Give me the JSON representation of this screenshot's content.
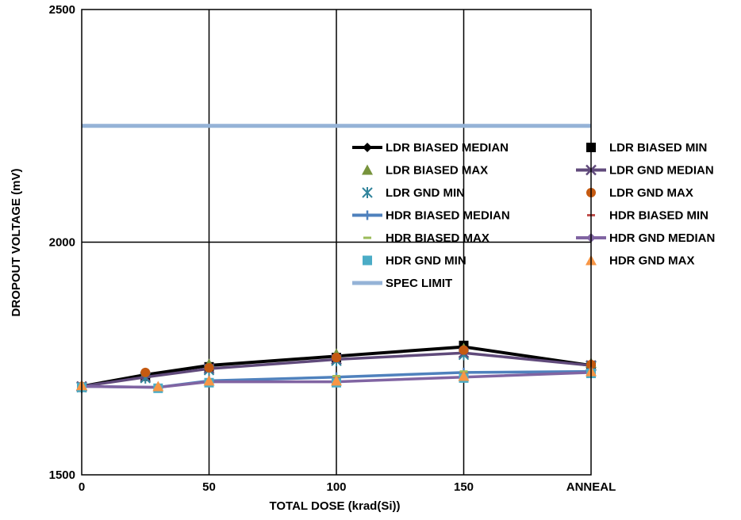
{
  "chart_data": {
    "type": "line",
    "title": "",
    "xlabel": "TOTAL DOSE (krad(Si))",
    "ylabel": "DROPOUT VOLTAGE (mV)",
    "ylim": [
      1500,
      2500
    ],
    "y_ticks": [
      "1500",
      "2000",
      "2500"
    ],
    "x_ticks": [
      {
        "x": 0,
        "label": "0"
      },
      {
        "x": 50,
        "label": "50"
      },
      {
        "x": 100,
        "label": "100"
      },
      {
        "x": 150,
        "label": "150"
      },
      {
        "x": 200,
        "label": "ANNEAL"
      }
    ],
    "xlim": [
      0,
      200
    ],
    "grid": true,
    "legend_position": "right",
    "spec_limit": 2250,
    "series": [
      {
        "name": "LDR BIASED MEDIAN",
        "color": "#000000",
        "marker": "diamond",
        "line": true,
        "x": [
          0,
          25,
          50,
          100,
          150,
          200
        ],
        "y": [
          1690,
          1715,
          1735,
          1755,
          1775,
          1735
        ]
      },
      {
        "name": "LDR BIASED MIN",
        "color": "#000000",
        "marker": "square",
        "line": false,
        "x": [
          0,
          25,
          50,
          100,
          150,
          200
        ],
        "y": [
          1688,
          1712,
          1732,
          1752,
          1778,
          1733
        ]
      },
      {
        "name": "LDR BIASED MAX",
        "color": "#77933c",
        "marker": "triangle",
        "line": false,
        "x": [
          0,
          25,
          50,
          100,
          150,
          200
        ],
        "y": [
          1692,
          1718,
          1738,
          1760,
          1772,
          1740
        ]
      },
      {
        "name": "LDR GND MEDIAN",
        "color": "#604a7b",
        "marker": "x",
        "line": true,
        "x": [
          0,
          25,
          50,
          100,
          150,
          200
        ],
        "y": [
          1690,
          1710,
          1728,
          1748,
          1762,
          1735
        ]
      },
      {
        "name": "LDR GND MIN",
        "color": "#31849b",
        "marker": "asterisk",
        "line": false,
        "x": [
          0,
          25,
          50,
          100,
          150,
          200
        ],
        "y": [
          1688,
          1708,
          1725,
          1745,
          1758,
          1733
        ]
      },
      {
        "name": "LDR GND MAX",
        "color": "#c55a11",
        "marker": "circle",
        "line": false,
        "x": [
          0,
          25,
          50,
          100,
          150,
          200
        ],
        "y": [
          1690,
          1720,
          1730,
          1752,
          1768,
          1737
        ]
      },
      {
        "name": "HDR BIASED MEDIAN",
        "color": "#4f81bd",
        "marker": "plus",
        "line": true,
        "x": [
          0,
          30,
          50,
          100,
          150,
          200
        ],
        "y": [
          1690,
          1688,
          1702,
          1710,
          1720,
          1722
        ]
      },
      {
        "name": "HDR BIASED MIN",
        "color": "#c0504d",
        "marker": "dash",
        "line": false,
        "x": [
          0,
          30,
          50,
          100,
          150,
          200
        ],
        "y": [
          1688,
          1686,
          1700,
          1708,
          1718,
          1720
        ]
      },
      {
        "name": "HDR BIASED MAX",
        "color": "#9bbb59",
        "marker": "dash",
        "line": false,
        "x": [
          0,
          30,
          50,
          100,
          150,
          200
        ],
        "y": [
          1692,
          1690,
          1704,
          1712,
          1722,
          1724
        ]
      },
      {
        "name": "HDR GND MEDIAN",
        "color": "#8064a2",
        "marker": "diamond",
        "line": true,
        "x": [
          0,
          30,
          50,
          100,
          150,
          200
        ],
        "y": [
          1690,
          1688,
          1700,
          1700,
          1710,
          1720
        ]
      },
      {
        "name": "HDR GND MIN",
        "color": "#4bacc6",
        "marker": "square",
        "line": false,
        "x": [
          0,
          30,
          50,
          100,
          150,
          200
        ],
        "y": [
          1688,
          1686,
          1698,
          1698,
          1708,
          1718
        ]
      },
      {
        "name": "HDR GND MAX",
        "color": "#f79646",
        "marker": "triangle",
        "line": false,
        "x": [
          0,
          30,
          50,
          100,
          150,
          200
        ],
        "y": [
          1692,
          1690,
          1702,
          1702,
          1712,
          1722
        ]
      },
      {
        "name": "SPEC LIMIT",
        "color": "#95b3d7",
        "marker": "none",
        "line": true,
        "x": [
          0,
          200
        ],
        "y": [
          2250,
          2250
        ]
      }
    ]
  }
}
